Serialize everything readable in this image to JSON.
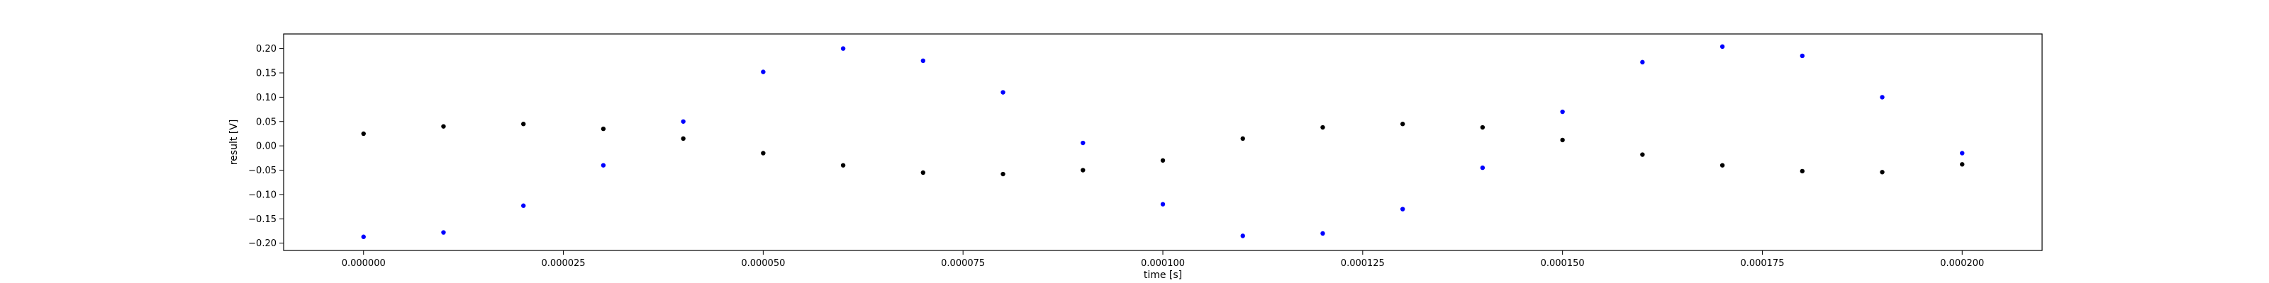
{
  "chart_data": {
    "type": "scatter",
    "title": "",
    "xlabel": "time [s]",
    "ylabel": "result [V]",
    "xlim": [
      -1e-05,
      0.00021
    ],
    "ylim": [
      -0.215,
      0.23
    ],
    "grid": false,
    "x_ticks": [
      0.0,
      2.5e-05,
      5e-05,
      7.5e-05,
      0.0001,
      0.000125,
      0.00015,
      0.000175,
      0.0002
    ],
    "x_tick_labels": [
      "0.000000",
      "0.000025",
      "0.000050",
      "0.000075",
      "0.000100",
      "0.000125",
      "0.000150",
      "0.000175",
      "0.000200"
    ],
    "y_ticks": [
      -0.2,
      -0.15,
      -0.1,
      -0.05,
      0.0,
      0.05,
      0.1,
      0.15,
      0.2
    ],
    "y_tick_labels": [
      "−0.20",
      "−0.15",
      "−0.10",
      "−0.05",
      "0.00",
      "0.05",
      "0.10",
      "0.15",
      "0.20"
    ],
    "series": [
      {
        "color": "#0000ff",
        "marker": "dot",
        "x": [
          0.0,
          1e-05,
          2e-05,
          3e-05,
          4e-05,
          5e-05,
          6e-05,
          7e-05,
          8e-05,
          9e-05,
          0.0001,
          0.00011,
          0.00012,
          0.00013,
          0.00014,
          0.00015,
          0.00016,
          0.00017,
          0.00018,
          0.00019,
          0.0002
        ],
        "y": [
          -0.187,
          -0.178,
          -0.123,
          -0.04,
          0.05,
          0.152,
          0.2,
          0.175,
          0.11,
          0.006,
          -0.12,
          -0.185,
          -0.18,
          -0.13,
          -0.045,
          0.07,
          0.172,
          0.204,
          0.185,
          0.1,
          -0.015
        ]
      },
      {
        "color": "#000000",
        "marker": "dot",
        "x": [
          0.0,
          1e-05,
          2e-05,
          3e-05,
          4e-05,
          5e-05,
          6e-05,
          7e-05,
          8e-05,
          9e-05,
          0.0001,
          0.00011,
          0.00012,
          0.00013,
          0.00014,
          0.00015,
          0.00016,
          0.00017,
          0.00018,
          0.00019,
          0.0002
        ],
        "y": [
          0.025,
          0.04,
          0.045,
          0.035,
          0.015,
          -0.015,
          -0.04,
          -0.055,
          -0.058,
          -0.05,
          -0.03,
          0.015,
          0.038,
          0.045,
          0.038,
          0.012,
          -0.018,
          -0.04,
          -0.052,
          -0.054,
          -0.038
        ]
      }
    ]
  }
}
